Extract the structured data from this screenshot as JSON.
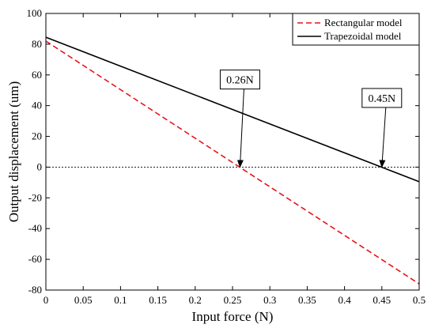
{
  "chart_data": {
    "type": "line",
    "xlabel": "Input force (N)",
    "ylabel": "Output displacement (um)",
    "xlim": [
      0,
      0.5
    ],
    "ylim": [
      -80,
      100
    ],
    "xticks": [
      0,
      0.05,
      0.1,
      0.15,
      0.2,
      0.25,
      0.3,
      0.35,
      0.4,
      0.45,
      0.5
    ],
    "xtick_labels": [
      "0",
      "0.05",
      "0.1",
      "0.15",
      "0.2",
      "0.25",
      "0.3",
      "0.35",
      "0.4",
      "0.45",
      "0.5"
    ],
    "yticks": [
      -80,
      -60,
      -40,
      -20,
      0,
      20,
      40,
      60,
      80,
      100
    ],
    "ytick_labels": [
      "-80",
      "-60",
      "-40",
      "-20",
      "0",
      "20",
      "40",
      "60",
      "80",
      "100"
    ],
    "grid": false,
    "legend_position": "top-right",
    "series": [
      {
        "name": "Rectangular model",
        "color": "#e8141c",
        "dash": "dashed",
        "x": [
          0,
          0.5
        ],
        "y": [
          82,
          -76
        ]
      },
      {
        "name": "Trapezoidal model",
        "color": "#000000",
        "dash": "solid",
        "x": [
          0,
          0.5
        ],
        "y": [
          84.5,
          -9.5
        ]
      }
    ],
    "reference_line": {
      "y": 0,
      "style": "dotted"
    },
    "annotations": [
      {
        "text": "0.26N",
        "x": 0.26,
        "y": 0,
        "box_anchor": [
          0.26,
          57
        ]
      },
      {
        "text": "0.45N",
        "x": 0.45,
        "y": 0,
        "box_anchor": [
          0.45,
          45
        ]
      }
    ]
  }
}
